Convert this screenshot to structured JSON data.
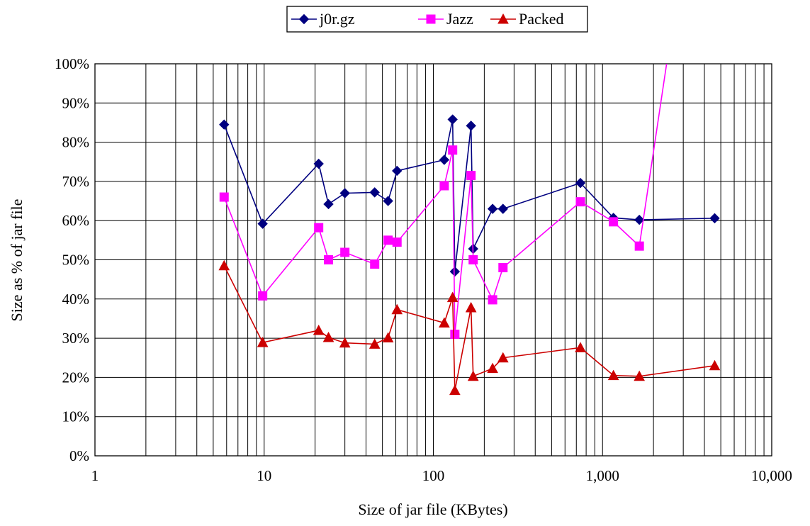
{
  "chart_data": {
    "type": "line",
    "xlabel": "Size of jar file (KBytes)",
    "ylabel": "Size as % of jar file",
    "x_scale": "log",
    "xlim": [
      1,
      10000
    ],
    "ylim": [
      0,
      100
    ],
    "x_ticks": [
      1,
      10,
      100,
      1000,
      10000
    ],
    "x_tick_labels": [
      "1",
      "10",
      "100",
      "1,000",
      "10,000"
    ],
    "y_ticks": [
      0,
      10,
      20,
      30,
      40,
      50,
      60,
      70,
      80,
      90,
      100
    ],
    "y_tick_labels": [
      "0%",
      "10%",
      "20%",
      "30%",
      "40%",
      "50%",
      "60%",
      "70%",
      "80%",
      "90%",
      "100%"
    ],
    "grid": true,
    "legend_position": "top-center",
    "series": [
      {
        "name": "j0r.gz",
        "color": "#000080",
        "marker": "diamond",
        "x": [
          5.8,
          9.8,
          21,
          24,
          30,
          45,
          54,
          61,
          116,
          130,
          134,
          167,
          172,
          224,
          258,
          740,
          1160,
          1650,
          4600
        ],
        "y": [
          84.5,
          59.2,
          74.5,
          64.2,
          67,
          67.2,
          65,
          72.7,
          75.5,
          85.8,
          47,
          84.2,
          52.8,
          63,
          63,
          69.6,
          60.7,
          60.2,
          60.6
        ]
      },
      {
        "name": "Jazz",
        "color": "#ff00ff",
        "marker": "square",
        "x": [
          5.8,
          9.8,
          21,
          24,
          30,
          45,
          54,
          61,
          116,
          130,
          134,
          167,
          172,
          224,
          258,
          740,
          1160,
          1650,
          2450
        ],
        "y": [
          66,
          40.8,
          58.2,
          50,
          51.9,
          48.9,
          55,
          54.5,
          68.9,
          78,
          31,
          71.5,
          50,
          39.8,
          48,
          64.8,
          59.7,
          53.5,
          103
        ]
      },
      {
        "name": "Packed",
        "color": "#cc0000",
        "marker": "triangle",
        "x": [
          5.8,
          9.8,
          21,
          24,
          30,
          45,
          54,
          61,
          116,
          130,
          134,
          167,
          172,
          224,
          258,
          740,
          1160,
          1650,
          4600
        ],
        "y": [
          48.5,
          28.9,
          32,
          30.2,
          28.8,
          28.5,
          30.1,
          37.3,
          33.9,
          40.4,
          16.7,
          37.8,
          20.3,
          22.3,
          25,
          27.6,
          20.5,
          20.3,
          23
        ]
      }
    ]
  }
}
